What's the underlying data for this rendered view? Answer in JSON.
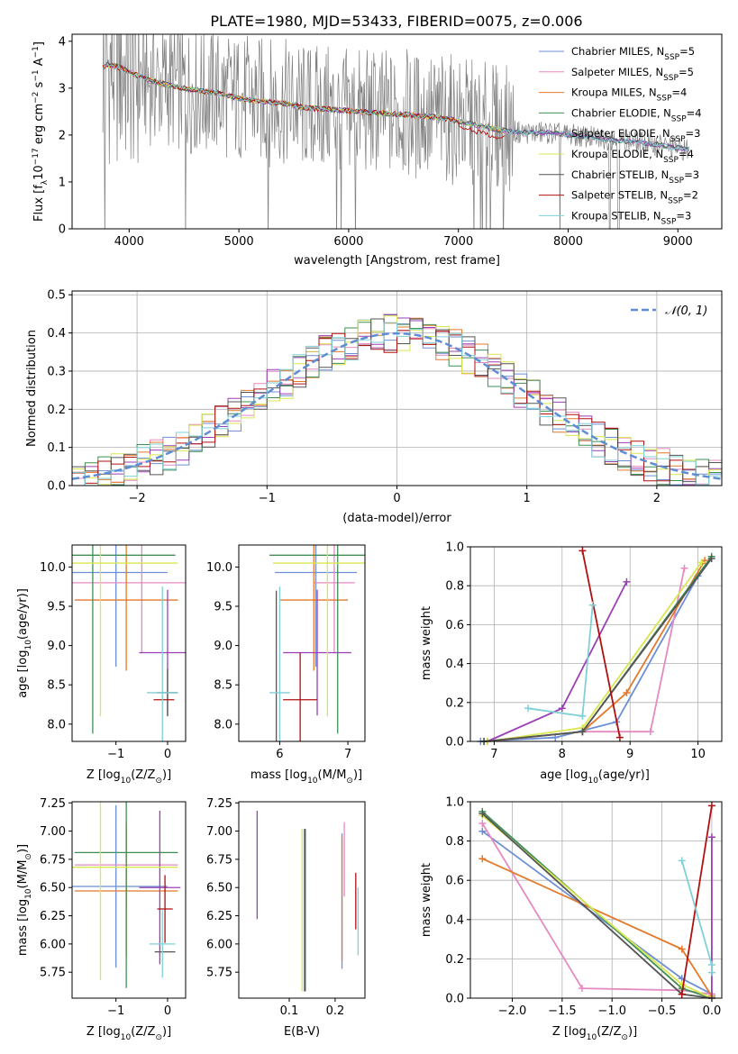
{
  "figure": {
    "title": "PLATE=1980, MJD=53433, FIBERID=0075, z=0.006"
  },
  "series": [
    {
      "name": "Chabrier MILES",
      "nssp": "5",
      "color": "#6b8fd6"
    },
    {
      "name": "Salpeter MILES",
      "nssp": "5",
      "color": "#e58ac0"
    },
    {
      "name": "Kroupa MILES",
      "nssp": "4",
      "color": "#e3792b"
    },
    {
      "name": "Chabrier ELODIE",
      "nssp": "4",
      "color": "#3f8f55"
    },
    {
      "name": "Salpeter ELODIE",
      "nssp": "3",
      "color": "#9b3fb5"
    },
    {
      "name": "Kroupa ELODIE",
      "nssp": "4",
      "color": "#d9e650"
    },
    {
      "name": "Chabrier STELIB",
      "nssp": "3",
      "color": "#555555"
    },
    {
      "name": "Salpeter STELIB",
      "nssp": "2",
      "color": "#b01010"
    },
    {
      "name": "Kroupa STELIB",
      "nssp": "3",
      "color": "#7fd0d6"
    }
  ],
  "chart_data": [
    {
      "id": "spectrum",
      "type": "line",
      "xlabel": "wavelength [Angstrom, rest frame]",
      "ylabel_main": "Flux [f",
      "ylabel_sub": "λ",
      "ylabel_rest": "10",
      "ylabel_exp1": "−17",
      "ylabel_mid": " erg cm",
      "ylabel_exp2": "−2",
      "ylabel_mid2": " s",
      "ylabel_exp3": "−1",
      "ylabel_mid3": " A",
      "ylabel_exp4": "−1",
      "ylabel_end": "]",
      "xlim": [
        3480,
        9400
      ],
      "ylim": [
        0,
        4.15
      ],
      "xticks": [
        4000,
        5000,
        6000,
        7000,
        8000,
        9000
      ],
      "yticks": [
        0,
        1,
        2,
        3,
        4
      ],
      "legend_position": "top-right",
      "data_color": "#808080",
      "data_range": [
        3760,
        9100
      ],
      "model_knots_x": [
        3760,
        3800,
        3900,
        4000,
        4200,
        4400,
        4600,
        4800,
        5000,
        5200,
        5400,
        5600,
        5800,
        6000,
        6200,
        6400,
        6600,
        6800,
        7000,
        7200,
        7400,
        7600,
        7800,
        8000,
        8200,
        8400,
        8600,
        8800,
        9000,
        9100
      ],
      "model_knots_y": [
        3.45,
        3.5,
        3.45,
        3.35,
        3.15,
        3.05,
        2.95,
        2.9,
        2.78,
        2.72,
        2.68,
        2.58,
        2.55,
        2.52,
        2.48,
        2.45,
        2.42,
        2.38,
        2.3,
        2.2,
        2.1,
        2.05,
        2.05,
        2.0,
        1.95,
        1.9,
        1.85,
        1.8,
        1.72,
        1.68
      ]
    },
    {
      "id": "residuals",
      "type": "histogram",
      "xlabel": "(data-model)/error",
      "ylabel": "Normed distribution",
      "xlim": [
        -2.5,
        2.5
      ],
      "ylim": [
        0,
        0.51
      ],
      "xticks": [
        -2,
        -1,
        0,
        1,
        2
      ],
      "yticks": [
        0.0,
        0.1,
        0.2,
        0.3,
        0.4,
        0.5
      ],
      "grid": true,
      "legend_position": "top-right",
      "gaussian_label": "𝒩(0, 1)",
      "gaussian_color": "#5f8dd3",
      "bin_width": 0.1,
      "bins_start": -2.5
    },
    {
      "id": "age_vs_Z",
      "type": "errorbar",
      "xlabel_pre": "Z [log",
      "xlabel_sub": "10",
      "xlabel_post": "(Z/Z",
      "xlabel_end": ")]",
      "ylabel": "age  [log10(age/yr)]",
      "xlim": [
        -1.85,
        0.35
      ],
      "ylim": [
        7.78,
        10.28
      ],
      "xticks": [
        -1,
        0
      ],
      "yticks": [
        8.0,
        8.5,
        9.0,
        9.5,
        10.0
      ],
      "points": [
        {
          "s": 0,
          "x": -1.0,
          "xerr": 1.0,
          "y": 9.93,
          "yerr": 1.2
        },
        {
          "s": 1,
          "x": -0.5,
          "xerr": 1.4,
          "y": 9.8,
          "yerr": 0.9
        },
        {
          "s": 2,
          "x": -0.8,
          "xerr": 1.0,
          "y": 9.58,
          "yerr": 0.9
        },
        {
          "s": 3,
          "x": -1.45,
          "xerr": 1.6,
          "y": 10.15,
          "yerr": 2.27
        },
        {
          "s": 4,
          "x": 0.0,
          "xerr": 0.55,
          "y": 8.91,
          "yerr": 0.8
        },
        {
          "s": 5,
          "x": -1.3,
          "xerr": 1.5,
          "y": 10.05,
          "yerr": 1.95
        },
        {
          "s": 6,
          "x": 0.0,
          "xerr": 0.2,
          "y": 8.4,
          "yerr": 0.3
        },
        {
          "s": 7,
          "x": -0.07,
          "xerr": 0.2,
          "y": 8.31,
          "yerr": 0.0
        },
        {
          "s": 8,
          "x": -0.1,
          "xerr": 0.3,
          "y": 8.4,
          "yerr": 1.35
        }
      ]
    },
    {
      "id": "age_vs_mass",
      "type": "errorbar",
      "xlabel_pre": "mass [log",
      "xlabel_sub": "10",
      "xlabel_post": "(M/M",
      "xlabel_end": ")]",
      "xlim": [
        5.4,
        7.25
      ],
      "ylim": [
        7.78,
        10.28
      ],
      "xticks": [
        6,
        7
      ],
      "yticks": [
        8.0,
        8.5,
        9.0,
        9.5,
        10.0
      ],
      "points": [
        {
          "s": 0,
          "x": 6.53,
          "xerr": 0.6,
          "y": 9.93,
          "yerr": 1.2
        },
        {
          "s": 1,
          "x": 6.8,
          "xerr": 0.3,
          "y": 9.8,
          "yerr": 0.9
        },
        {
          "s": 2,
          "x": 6.5,
          "xerr": 0.5,
          "y": 9.58,
          "yerr": 0.9
        },
        {
          "s": 3,
          "x": 6.85,
          "xerr": 1.0,
          "y": 10.15,
          "yerr": 2.27
        },
        {
          "s": 4,
          "x": 6.55,
          "xerr": 0.5,
          "y": 8.91,
          "yerr": 0.8
        },
        {
          "s": 5,
          "x": 6.7,
          "xerr": 0.8,
          "y": 10.05,
          "yerr": 1.95
        },
        {
          "s": 6,
          "x": 5.95,
          "xerr": 0.0,
          "y": 8.4,
          "yerr": 1.3
        },
        {
          "s": 7,
          "x": 6.3,
          "xerr": 0.25,
          "y": 8.31,
          "yerr": 0.6
        },
        {
          "s": 8,
          "x": 6.0,
          "xerr": 0.15,
          "y": 8.4,
          "yerr": 1.35
        }
      ]
    },
    {
      "id": "weight_vs_age",
      "type": "line",
      "xlabel_pre": "age  [log",
      "xlabel_sub": "10",
      "xlabel_post": "(age/yr)]",
      "ylabel": "mass weight",
      "xlim": [
        6.65,
        10.35
      ],
      "ylim": [
        0,
        1.0
      ],
      "xticks": [
        7,
        8,
        9,
        10
      ],
      "yticks": [
        0.0,
        0.2,
        0.4,
        0.6,
        0.8,
        1.0
      ],
      "grid": true,
      "lines": [
        {
          "s": 0,
          "x": [
            6.8,
            7.9,
            8.8,
            10.0
          ],
          "y": [
            0.0,
            0.02,
            0.1,
            0.85
          ]
        },
        {
          "s": 1,
          "x": [
            6.9,
            8.3,
            9.3,
            9.8
          ],
          "y": [
            0.0,
            0.05,
            0.05,
            0.89
          ]
        },
        {
          "s": 2,
          "x": [
            6.9,
            8.3,
            8.95,
            10.1
          ],
          "y": [
            0.0,
            0.05,
            0.25,
            0.93
          ]
        },
        {
          "s": 3,
          "x": [
            6.85,
            8.3,
            10.2
          ],
          "y": [
            0.0,
            0.05,
            0.95
          ]
        },
        {
          "s": 4,
          "x": [
            6.9,
            8.0,
            8.95
          ],
          "y": [
            0.0,
            0.17,
            0.82
          ]
        },
        {
          "s": 5,
          "x": [
            6.9,
            8.3,
            10.05
          ],
          "y": [
            0.0,
            0.07,
            0.92
          ]
        },
        {
          "s": 6,
          "x": [
            6.85,
            8.3,
            10.2
          ],
          "y": [
            0.0,
            0.05,
            0.94
          ]
        },
        {
          "s": 7,
          "x": [
            8.3,
            8.85
          ],
          "y": [
            0.98,
            0.02
          ]
        },
        {
          "s": 8,
          "x": [
            7.5,
            8.3,
            8.45
          ],
          "y": [
            0.17,
            0.13,
            0.7
          ]
        }
      ]
    },
    {
      "id": "mass_vs_Z",
      "type": "errorbar",
      "xlabel_pre": "Z [log",
      "xlabel_sub": "10",
      "xlabel_post": "(Z/Z",
      "xlabel_end": ")]",
      "ylabel": "mass [log10(M/M⊙)]",
      "xlim": [
        -1.85,
        0.35
      ],
      "ylim": [
        5.52,
        7.26
      ],
      "xticks": [
        -1,
        0
      ],
      "yticks": [
        5.75,
        6.0,
        6.25,
        6.5,
        6.75,
        7.0,
        7.25
      ],
      "points": [
        {
          "s": 0,
          "x": -1.0,
          "xerr": 1.0,
          "y": 6.51,
          "yerr": 0.72
        },
        {
          "s": 1,
          "x": -0.8,
          "xerr": 1.0,
          "y": 6.7,
          "yerr": 0.38
        },
        {
          "s": 2,
          "x": -0.8,
          "xerr": 1.0,
          "y": 6.47,
          "yerr": 0.58
        },
        {
          "s": 3,
          "x": -0.8,
          "xerr": 1.0,
          "y": 6.81,
          "yerr": 1.2
        },
        {
          "s": 4,
          "x": -0.15,
          "xerr": 0.4,
          "y": 6.5,
          "yerr": 0.68
        },
        {
          "s": 5,
          "x": -1.3,
          "xerr": 1.5,
          "y": 6.68,
          "yerr": 1.0
        },
        {
          "s": 6,
          "x": -0.05,
          "xerr": 0.2,
          "y": 5.93,
          "yerr": 0.0
        },
        {
          "s": 7,
          "x": -0.05,
          "xerr": 0.15,
          "y": 6.31,
          "yerr": 0.3
        },
        {
          "s": 8,
          "x": -0.1,
          "xerr": 0.25,
          "y": 6.0,
          "yerr": 0.3
        }
      ]
    },
    {
      "id": "mass_vs_EBV",
      "type": "errorbar",
      "xlabel": "E(B-V)",
      "xlim": [
        -0.01,
        0.265
      ],
      "ylim": [
        5.52,
        7.26
      ],
      "xticks": [
        0.1,
        0.2
      ],
      "yticks": [
        5.75,
        6.0,
        6.25,
        6.5,
        6.75,
        7.0,
        7.25
      ],
      "points": [
        {
          "s": 0,
          "x": 0.215,
          "y": 6.38,
          "yerr": 0.6
        },
        {
          "s": 1,
          "x": 0.22,
          "y": 6.75,
          "yerr": 0.33
        },
        {
          "s": 2,
          "x": 0.215,
          "y": 6.4,
          "yerr": 0.55
        },
        {
          "s": 3,
          "x": 0.133,
          "y": 6.3,
          "yerr": 0.72
        },
        {
          "s": 4,
          "x": 0.03,
          "y": 6.7,
          "yerr": 0.48
        },
        {
          "s": 5,
          "x": 0.128,
          "y": 6.3,
          "yerr": 0.72
        },
        {
          "s": 6,
          "x": 0.135,
          "y": 6.3,
          "yerr": 0.72
        },
        {
          "s": 7,
          "x": 0.245,
          "y": 6.38,
          "yerr": 0.25
        },
        {
          "s": 8,
          "x": 0.25,
          "y": 6.2,
          "yerr": 0.3
        }
      ]
    },
    {
      "id": "weight_vs_Z",
      "type": "line",
      "xlabel_pre": "Z [log",
      "xlabel_sub": "10",
      "xlabel_post": "(Z/Z",
      "xlabel_end": ")]",
      "ylabel": "mass weight",
      "xlim": [
        -2.42,
        0.1
      ],
      "ylim": [
        0,
        1.0
      ],
      "xticks": [
        -2.0,
        -1.5,
        -1.0,
        -0.5,
        0.0
      ],
      "yticks": [
        0.0,
        0.2,
        0.4,
        0.6,
        0.8,
        1.0
      ],
      "grid": true,
      "lines": [
        {
          "s": 0,
          "x": [
            -2.3,
            -0.3,
            0.0
          ],
          "y": [
            0.85,
            0.1,
            0.02
          ]
        },
        {
          "s": 1,
          "x": [
            -2.3,
            -1.3,
            -0.3,
            0.0
          ],
          "y": [
            0.89,
            0.05,
            0.04,
            0.02
          ]
        },
        {
          "s": 2,
          "x": [
            -2.3,
            -0.3,
            0.0
          ],
          "y": [
            0.71,
            0.25,
            0.01
          ]
        },
        {
          "s": 3,
          "x": [
            -2.3,
            -0.3,
            0.0
          ],
          "y": [
            0.95,
            0.05,
            0.0
          ]
        },
        {
          "s": 4,
          "x": [
            0.0,
            0.0
          ],
          "y": [
            0.82,
            0.0
          ]
        },
        {
          "s": 5,
          "x": [
            -2.3,
            -0.3,
            0.0
          ],
          "y": [
            0.93,
            0.07,
            0.0
          ]
        },
        {
          "s": 6,
          "x": [
            -2.3,
            -0.3,
            0.0
          ],
          "y": [
            0.94,
            0.02,
            0.0
          ]
        },
        {
          "s": 7,
          "x": [
            -0.3,
            0.0
          ],
          "y": [
            0.02,
            0.98
          ]
        },
        {
          "s": 8,
          "x": [
            -0.3,
            0.0,
            0.0
          ],
          "y": [
            0.7,
            0.17,
            0.13
          ]
        }
      ]
    }
  ],
  "tick_labels": {
    "spectrum_x": [
      "4000",
      "5000",
      "6000",
      "7000",
      "8000",
      "9000"
    ],
    "spectrum_y": [
      "0",
      "1",
      "2",
      "3",
      "4"
    ],
    "resid_x": [
      "−2",
      "−1",
      "0",
      "1",
      "2"
    ],
    "resid_y": [
      "0.0",
      "0.1",
      "0.2",
      "0.3",
      "0.4",
      "0.5"
    ],
    "ageZ_x": [
      "−1",
      "0"
    ],
    "age_y": [
      "8.0",
      "8.5",
      "9.0",
      "9.5",
      "10.0"
    ],
    "mass_x": [
      "6",
      "7"
    ],
    "wage_x": [
      "7",
      "8",
      "9",
      "10"
    ],
    "weight_y": [
      "0.0",
      "0.2",
      "0.4",
      "0.6",
      "0.8",
      "1.0"
    ],
    "massy": [
      "5.75",
      "6.00",
      "6.25",
      "6.50",
      "6.75",
      "7.00",
      "7.25"
    ],
    "ebv_x": [
      "0.1",
      "0.2"
    ],
    "wZ_x": [
      "−2.0",
      "−1.5",
      "−1.0",
      "−0.5",
      "0.0"
    ]
  }
}
